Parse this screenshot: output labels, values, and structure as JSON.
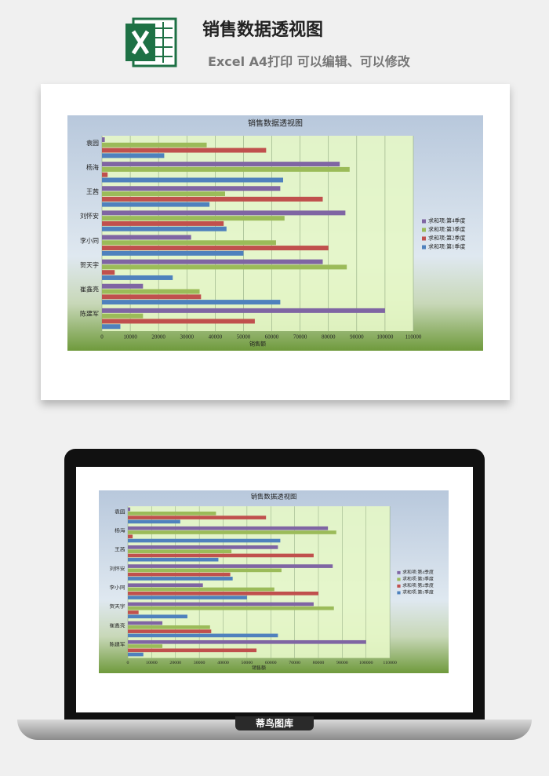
{
  "header": {
    "title": "销售数据透视图",
    "subtitle": "Excel A4打印 可以编辑、可以修改"
  },
  "footer": {
    "brand": "蒂鸟图库"
  },
  "chart_data": [
    {
      "type": "bar",
      "orientation": "horizontal",
      "title": "销售数据透视图",
      "x_label": "销售额",
      "categories": [
        "袁园",
        "杨海",
        "王茜",
        "刘怀安",
        "李小同",
        "贺天宇",
        "崔鑫亮",
        "陈建军"
      ],
      "series": [
        {
          "name": "求和项:第4季度",
          "color": "#7f65a3",
          "values": [
            1000,
            84000,
            63000,
            86000,
            31500,
            78000,
            14500,
            100000
          ]
        },
        {
          "name": "求和项:第3季度",
          "color": "#9bbb59",
          "values": [
            37000,
            87500,
            43500,
            64500,
            61500,
            86500,
            34500,
            14500
          ]
        },
        {
          "name": "求和项:第2季度",
          "color": "#c0504d",
          "values": [
            58000,
            2000,
            78000,
            43000,
            80000,
            4500,
            35000,
            54000
          ]
        },
        {
          "name": "求和项:第1季度",
          "color": "#4f81bd",
          "values": [
            22000,
            64000,
            38000,
            44000,
            50000,
            25000,
            63000,
            6500
          ]
        }
      ],
      "xlim": [
        0,
        110000
      ],
      "xticks": [
        0,
        10000,
        20000,
        30000,
        40000,
        50000,
        60000,
        70000,
        80000,
        90000,
        100000,
        110000
      ],
      "grid": true,
      "legend": "right"
    },
    {
      "type": "bar",
      "orientation": "horizontal",
      "title": "销售数据透视图",
      "x_label": "销售额",
      "categories": [
        "袁园",
        "杨海",
        "王茜",
        "刘怀安",
        "李小同",
        "贺天宇",
        "崔鑫亮",
        "陈建军"
      ],
      "series": [
        {
          "name": "求和项:第4季度",
          "color": "#7f65a3",
          "values": [
            1000,
            84000,
            63000,
            86000,
            31500,
            78000,
            14500,
            100000
          ]
        },
        {
          "name": "求和项:第3季度",
          "color": "#9bbb59",
          "values": [
            37000,
            87500,
            43500,
            64500,
            61500,
            86500,
            34500,
            14500
          ]
        },
        {
          "name": "求和项:第2季度",
          "color": "#c0504d",
          "values": [
            58000,
            2000,
            78000,
            43000,
            80000,
            4500,
            35000,
            54000
          ]
        },
        {
          "name": "求和项:第1季度",
          "color": "#4f81bd",
          "values": [
            22000,
            64000,
            38000,
            44000,
            50000,
            25000,
            63000,
            6500
          ]
        }
      ],
      "xlim": [
        0,
        110000
      ],
      "xticks": [
        0,
        10000,
        20000,
        30000,
        40000,
        50000,
        60000,
        70000,
        80000,
        90000,
        100000,
        110000
      ],
      "grid": true,
      "legend": "right"
    }
  ]
}
